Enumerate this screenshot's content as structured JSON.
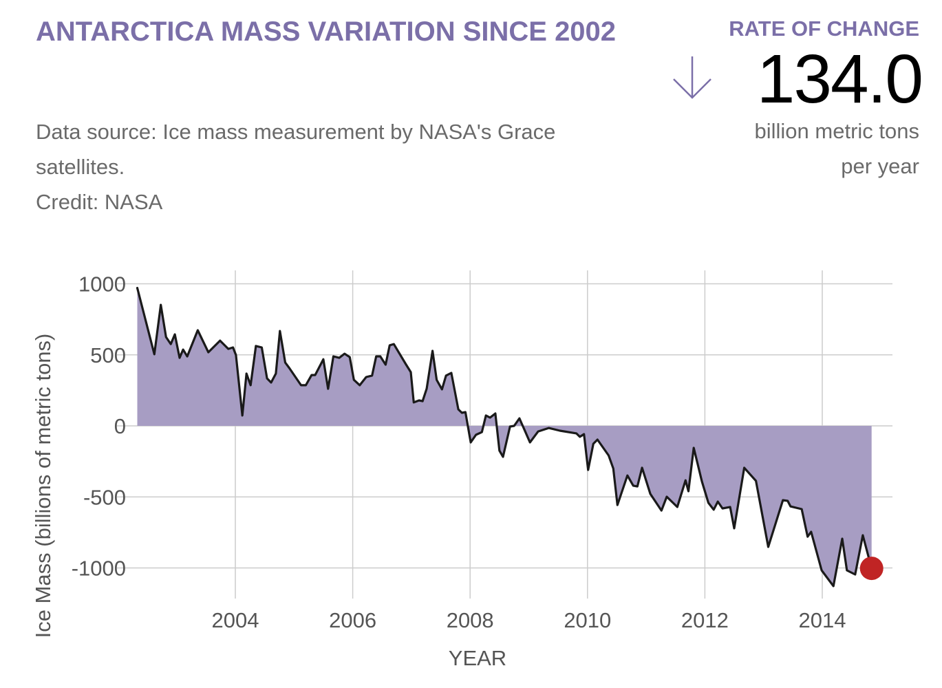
{
  "header": {
    "title": "ANTARCTICA MASS VARIATION SINCE 2002",
    "source_line1": "Data source: Ice mass measurement by NASA's Grace",
    "source_line2": "satellites.",
    "credit": "Credit: NASA"
  },
  "rate": {
    "label": "RATE OF CHANGE",
    "direction_icon": "arrow-down-icon",
    "value": "134.0",
    "unit_line1": "billion metric tons",
    "unit_line2": "per year"
  },
  "colors": {
    "accent": "#7b6fa8",
    "area_fill": "#a79dc3",
    "line": "#1a1a1a",
    "marker": "#c02424",
    "grid": "#cccccc"
  },
  "chart_data": {
    "type": "area",
    "title": "ANTARCTICA MASS VARIATION SINCE 2002",
    "xlabel": "YEAR",
    "ylabel": "Ice Mass (billions of metric tons)",
    "xlim": [
      2001.5,
      2015.2
    ],
    "ylim": [
      -1250,
      1050
    ],
    "yticks": [
      1000,
      500,
      0,
      -500,
      -1000
    ],
    "ytick_labels": [
      "1000",
      "500",
      "0",
      "-500",
      "-1000"
    ],
    "xticks": [
      2004,
      2006,
      2008,
      2010,
      2012,
      2014
    ],
    "xtick_labels": [
      "2004",
      "2006",
      "2008",
      "2010",
      "2012",
      "2014"
    ],
    "grid": true,
    "legend": "none",
    "highlight_last_point": true,
    "series": [
      {
        "name": "Ice Mass",
        "x": [
          2002.33,
          2002.62,
          2002.73,
          2002.82,
          2002.9,
          2002.97,
          2003.05,
          2003.11,
          2003.18,
          2003.36,
          2003.54,
          2003.74,
          2003.88,
          2003.96,
          2004.01,
          2004.12,
          2004.19,
          2004.26,
          2004.35,
          2004.45,
          2004.54,
          2004.61,
          2004.69,
          2004.76,
          2004.85,
          2004.92,
          2005.12,
          2005.2,
          2005.3,
          2005.36,
          2005.5,
          2005.58,
          2005.67,
          2005.77,
          2005.86,
          2005.95,
          2006.02,
          2006.12,
          2006.23,
          2006.33,
          2006.4,
          2006.47,
          2006.56,
          2006.63,
          2006.7,
          2006.91,
          2006.99,
          2007.04,
          2007.13,
          2007.19,
          2007.26,
          2007.36,
          2007.43,
          2007.52,
          2007.59,
          2007.68,
          2007.8,
          2007.86,
          2007.92,
          2008.01,
          2008.1,
          2008.2,
          2008.27,
          2008.34,
          2008.43,
          2008.5,
          2008.56,
          2008.68,
          2008.75,
          2008.84,
          2009.02,
          2009.16,
          2009.34,
          2009.53,
          2009.81,
          2009.87,
          2009.94,
          2010.01,
          2010.1,
          2010.17,
          2010.36,
          2010.44,
          2010.51,
          2010.68,
          2010.78,
          2010.85,
          2010.93,
          2011.07,
          2011.26,
          2011.35,
          2011.53,
          2011.67,
          2011.72,
          2011.81,
          2011.95,
          2012.06,
          2012.15,
          2012.22,
          2012.3,
          2012.43,
          2012.5,
          2012.67,
          2012.87,
          2013.08,
          2013.33,
          2013.41,
          2013.46,
          2013.65,
          2013.75,
          2013.81,
          2013.99,
          2014.19,
          2014.34,
          2014.42,
          2014.56,
          2014.69,
          2014.84
        ],
        "values": [
          971,
          504,
          852,
          625,
          576,
          644,
          479,
          537,
          489,
          673,
          518,
          600,
          542,
          552,
          499,
          73,
          368,
          286,
          562,
          552,
          334,
          305,
          368,
          668,
          446,
          407,
          286,
          286,
          358,
          358,
          469,
          261,
          489,
          479,
          508,
          484,
          324,
          286,
          344,
          354,
          489,
          489,
          431,
          567,
          576,
          431,
          378,
          165,
          179,
          174,
          262,
          528,
          324,
          257,
          354,
          373,
          116,
          92,
          97,
          -116,
          -63,
          -44,
          73,
          58,
          87,
          -174,
          -218,
          -5,
          0,
          53,
          -116,
          -39,
          -15,
          -34,
          -53,
          -77,
          -58,
          -310,
          -126,
          -97,
          -208,
          -300,
          -557,
          -349,
          -421,
          -426,
          -295,
          -479,
          -596,
          -499,
          -571,
          -383,
          -460,
          -155,
          -392,
          -542,
          -590,
          -533,
          -581,
          -571,
          -721,
          -295,
          -387,
          -852,
          -523,
          -528,
          -567,
          -586,
          -780,
          -746,
          -1017,
          -1128,
          -794,
          -1017,
          -1046,
          -770,
          -1003
        ]
      }
    ]
  }
}
